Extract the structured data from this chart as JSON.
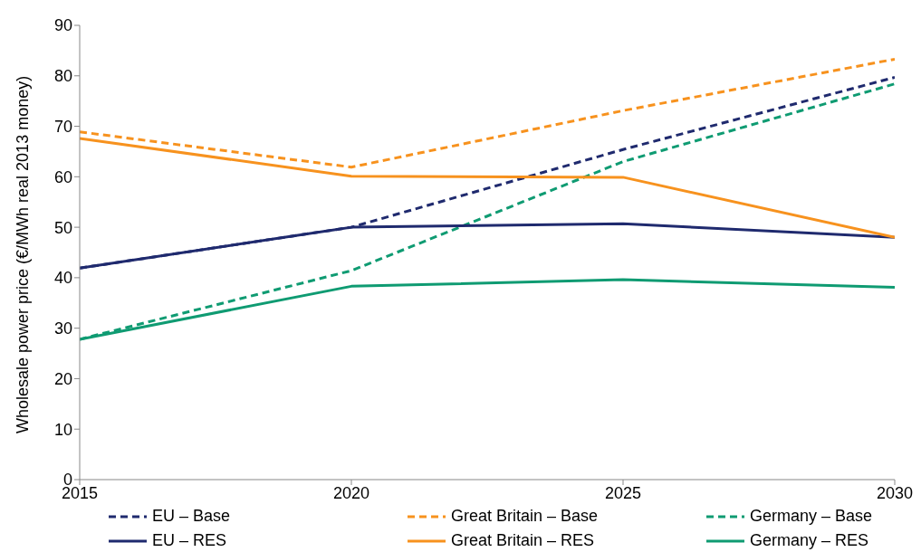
{
  "chart_data": {
    "type": "line",
    "ylabel": "Wholesale power price (€/MWh real 2013 money)",
    "x": [
      2015,
      2020,
      2025,
      2030
    ],
    "xlim": [
      2015,
      2030
    ],
    "xticks": [
      2015,
      2020,
      2025,
      2030
    ],
    "ylim": [
      0,
      90
    ],
    "yticks": [
      0,
      10,
      20,
      30,
      40,
      50,
      60,
      70,
      80,
      90
    ],
    "grid": false,
    "legend": "bottom",
    "marker": "none",
    "series": [
      {
        "name": "EU – Base",
        "color": "#1f2a6e",
        "line_style": "dashed",
        "values": [
          41.9,
          50,
          65.4,
          79.7
        ]
      },
      {
        "name": "Great Britain – Base",
        "color": "#f7921e",
        "line_style": "dashed",
        "values": [
          68.9,
          61.9,
          73.1,
          83.3
        ]
      },
      {
        "name": "Germany – Base",
        "color": "#0f9b72",
        "line_style": "dashed",
        "values": [
          27.8,
          41.4,
          63.0,
          78.4
        ]
      },
      {
        "name": "EU – RES",
        "color": "#1f2a6e",
        "line_style": "solid",
        "values": [
          41.9,
          50,
          50.7,
          48.0
        ]
      },
      {
        "name": "Great Britain – RES",
        "color": "#f7921e",
        "line_style": "solid",
        "values": [
          67.6,
          60.1,
          59.9,
          48.0
        ]
      },
      {
        "name": "Germany – RES",
        "color": "#0f9b72",
        "line_style": "solid",
        "values": [
          27.8,
          38.3,
          39.6,
          38.1
        ]
      }
    ]
  }
}
